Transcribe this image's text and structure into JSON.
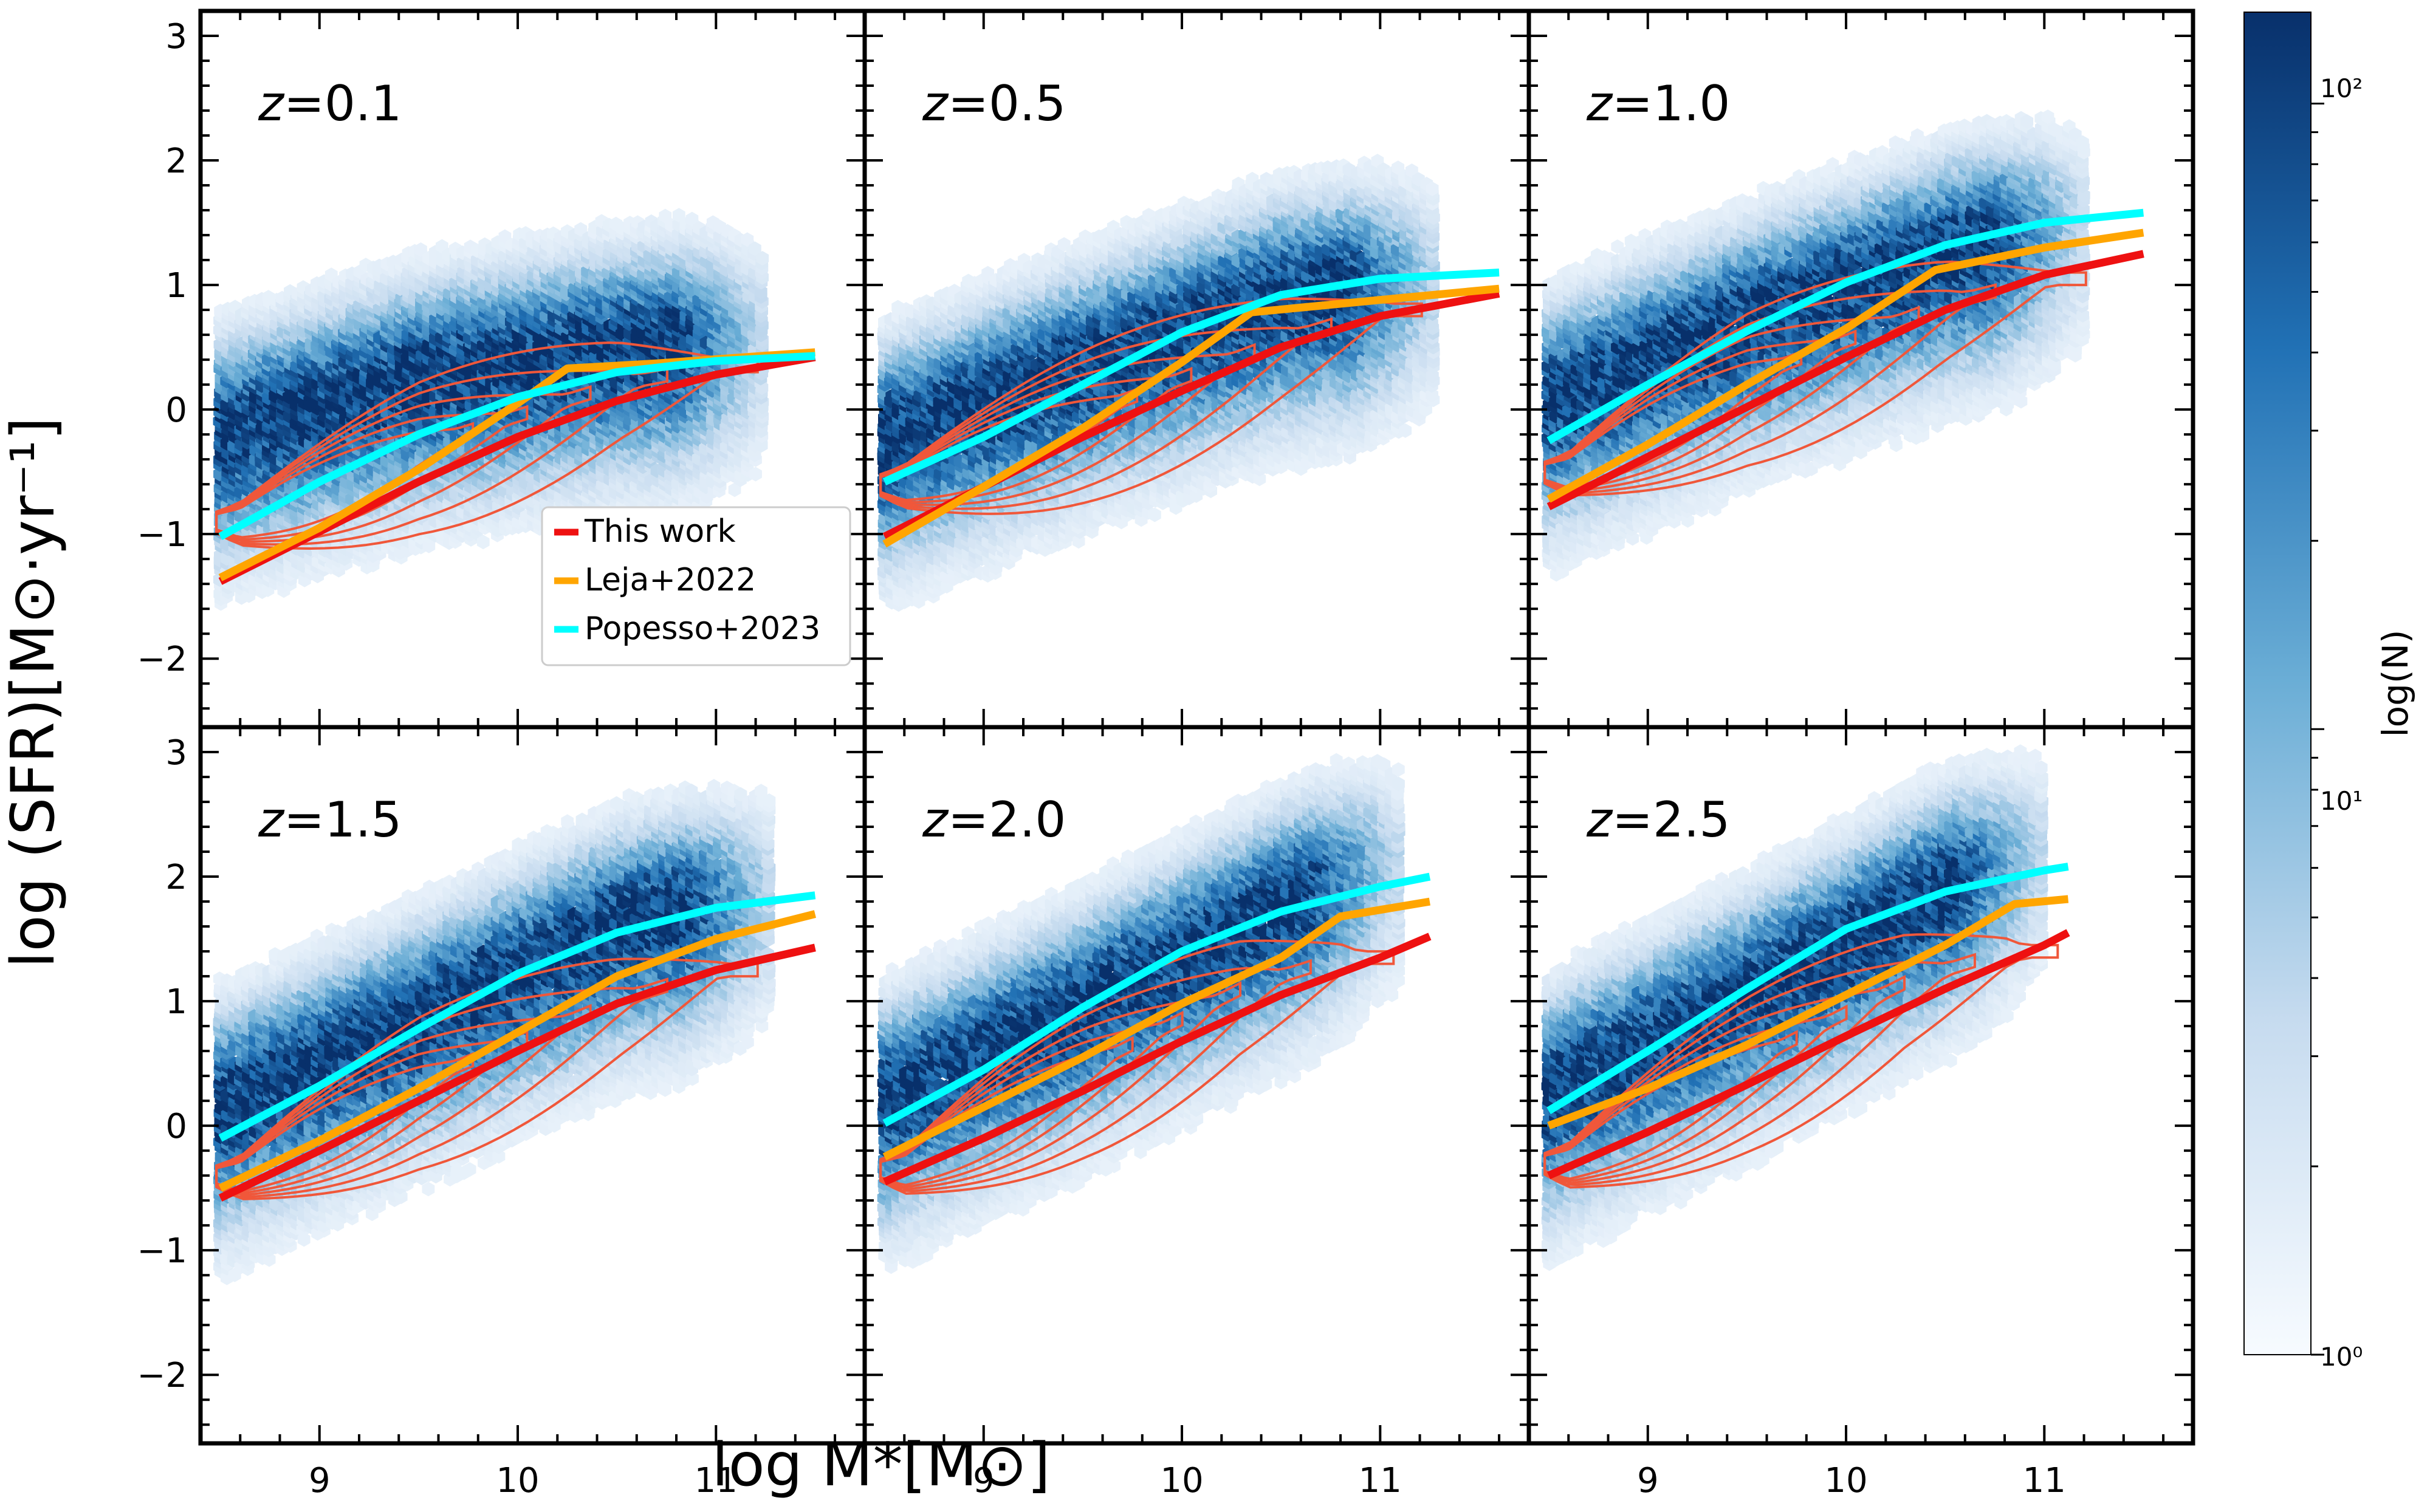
{
  "figure": {
    "xlabel": "log M*[M⊙]",
    "ylabel": "log (SFR)[M⊙·yr⁻¹]",
    "colorbar": {
      "label": "log(N)",
      "ticks": [
        "10⁰",
        "10¹",
        "10²"
      ],
      "tick_values": [
        1,
        10,
        100
      ],
      "range": [
        1,
        140
      ],
      "cmap": [
        "#f7fbff",
        "#c6dbef",
        "#6baed6",
        "#2171b5",
        "#08306b"
      ]
    },
    "legend": {
      "location": "lower-right of first panel",
      "entries": [
        {
          "label": "This work",
          "color": "#ee1111"
        },
        {
          "label": "Leja+2022",
          "color": "#ffa500"
        },
        {
          "label": "Popesso+2023",
          "color": "#00ffff"
        }
      ]
    },
    "contour_color": "#f0573a"
  },
  "chart_data": [
    {
      "type": "line",
      "panel_label": "z=0.1",
      "z": "0.1",
      "xlim": [
        8.4,
        11.75
      ],
      "ylim": [
        -2.55,
        3.2
      ],
      "xticks": [
        9,
        10,
        11
      ],
      "yticks": [
        -2,
        -1,
        0,
        1,
        2,
        3
      ],
      "series": [
        {
          "name": "This work",
          "x": [
            8.5,
            9.0,
            9.5,
            10.0,
            10.5,
            11.0,
            11.5
          ],
          "y": [
            -1.38,
            -0.98,
            -0.58,
            -0.22,
            0.07,
            0.28,
            0.42
          ]
        },
        {
          "name": "Leja+2022",
          "x": [
            8.5,
            9.0,
            9.5,
            10.0,
            10.25,
            10.7,
            11.5
          ],
          "y": [
            -1.35,
            -0.95,
            -0.48,
            0.05,
            0.33,
            0.37,
            0.46
          ]
        },
        {
          "name": "Popesso+2023",
          "x": [
            8.5,
            9.0,
            9.5,
            10.0,
            10.5,
            11.0,
            11.5
          ],
          "y": [
            -1.02,
            -0.58,
            -0.2,
            0.1,
            0.3,
            0.39,
            0.43
          ]
        }
      ],
      "hexbin": {
        "ridge": [
          [
            8.5,
            -0.15
          ],
          [
            9.5,
            0.3
          ],
          [
            10.5,
            0.55
          ],
          [
            11.2,
            0.62
          ]
        ],
        "spread": 0.5,
        "xrange": [
          8.5,
          11.25
        ]
      },
      "contour_ridge": {
        "ridge": [
          [
            8.6,
            -0.9
          ],
          [
            9.5,
            -0.3
          ],
          [
            10.5,
            0.2
          ],
          [
            11.0,
            0.35
          ]
        ]
      }
    },
    {
      "type": "line",
      "panel_label": "z=0.5",
      "z": "0.5",
      "xlim": [
        8.4,
        11.75
      ],
      "ylim": [
        -2.55,
        3.2
      ],
      "xticks": [
        9,
        10,
        11
      ],
      "yticks": [
        -2,
        -1,
        0,
        1,
        2,
        3
      ],
      "series": [
        {
          "name": "This work",
          "x": [
            8.5,
            9.0,
            9.5,
            10.0,
            10.5,
            11.0,
            11.6
          ],
          "y": [
            -1.02,
            -0.62,
            -0.22,
            0.15,
            0.5,
            0.75,
            0.93
          ]
        },
        {
          "name": "Leja+2022",
          "x": [
            8.5,
            9.0,
            9.5,
            10.0,
            10.35,
            11.0,
            11.6
          ],
          "y": [
            -1.08,
            -0.62,
            -0.15,
            0.38,
            0.78,
            0.88,
            0.97
          ]
        },
        {
          "name": "Popesso+2023",
          "x": [
            8.5,
            9.0,
            9.5,
            10.0,
            10.5,
            11.0,
            11.6
          ],
          "y": [
            -0.58,
            -0.22,
            0.2,
            0.62,
            0.92,
            1.05,
            1.1
          ]
        }
      ],
      "hexbin": {
        "ridge": [
          [
            8.5,
            -0.2
          ],
          [
            9.5,
            0.4
          ],
          [
            10.5,
            0.95
          ],
          [
            11.2,
            1.1
          ]
        ],
        "spread": 0.5,
        "xrange": [
          8.5,
          11.3
        ]
      },
      "contour_ridge": {
        "ridge": [
          [
            8.6,
            -0.6
          ],
          [
            9.5,
            -0.05
          ],
          [
            10.5,
            0.55
          ],
          [
            11.0,
            0.8
          ]
        ]
      }
    },
    {
      "type": "line",
      "panel_label": "z=1.0",
      "z": "1.0",
      "xlim": [
        8.4,
        11.75
      ],
      "ylim": [
        -2.55,
        3.2
      ],
      "xticks": [
        9,
        10,
        11
      ],
      "yticks": [
        -2,
        -1,
        0,
        1,
        2,
        3
      ],
      "series": [
        {
          "name": "This work",
          "x": [
            8.5,
            9.0,
            9.5,
            10.0,
            10.5,
            11.0,
            11.5
          ],
          "y": [
            -0.78,
            -0.38,
            0.02,
            0.42,
            0.8,
            1.08,
            1.25
          ]
        },
        {
          "name": "Leja+2022",
          "x": [
            8.5,
            9.0,
            9.5,
            10.0,
            10.45,
            11.0,
            11.5
          ],
          "y": [
            -0.72,
            -0.28,
            0.2,
            0.65,
            1.12,
            1.3,
            1.42
          ]
        },
        {
          "name": "Popesso+2023",
          "x": [
            8.5,
            9.0,
            9.5,
            10.0,
            10.5,
            11.0,
            11.5
          ],
          "y": [
            -0.25,
            0.2,
            0.63,
            1.02,
            1.32,
            1.5,
            1.58
          ]
        }
      ],
      "hexbin": {
        "ridge": [
          [
            8.5,
            0.1
          ],
          [
            9.5,
            0.75
          ],
          [
            10.5,
            1.3
          ],
          [
            11.2,
            1.55
          ]
        ],
        "spread": 0.5,
        "xrange": [
          8.5,
          11.2
        ]
      },
      "contour_ridge": {
        "ridge": [
          [
            8.6,
            -0.5
          ],
          [
            9.5,
            0.25
          ],
          [
            10.5,
            0.85
          ],
          [
            11.0,
            1.05
          ]
        ]
      }
    },
    {
      "type": "line",
      "panel_label": "z=1.5",
      "z": "1.5",
      "xlim": [
        8.4,
        11.75
      ],
      "ylim": [
        -2.55,
        3.2
      ],
      "xticks": [
        9,
        10,
        11
      ],
      "yticks": [
        -2,
        -1,
        0,
        1,
        2,
        3
      ],
      "series": [
        {
          "name": "This work",
          "x": [
            8.5,
            9.0,
            9.5,
            10.0,
            10.5,
            11.0,
            11.5
          ],
          "y": [
            -0.58,
            -0.2,
            0.2,
            0.6,
            0.98,
            1.25,
            1.43
          ]
        },
        {
          "name": "Leja+2022",
          "x": [
            8.5,
            9.0,
            9.5,
            10.0,
            10.5,
            11.0,
            11.5
          ],
          "y": [
            -0.5,
            -0.12,
            0.3,
            0.75,
            1.2,
            1.5,
            1.7
          ]
        },
        {
          "name": "Popesso+2023",
          "x": [
            8.5,
            9.0,
            9.5,
            10.0,
            10.5,
            11.0,
            11.5
          ],
          "y": [
            -0.1,
            0.32,
            0.78,
            1.22,
            1.55,
            1.75,
            1.85
          ]
        }
      ],
      "hexbin": {
        "ridge": [
          [
            8.5,
            0.2
          ],
          [
            9.5,
            0.9
          ],
          [
            10.5,
            1.65
          ],
          [
            11.2,
            1.9
          ]
        ],
        "spread": 0.5,
        "xrange": [
          8.5,
          11.3
        ]
      },
      "contour_ridge": {
        "ridge": [
          [
            8.6,
            -0.4
          ],
          [
            9.5,
            0.35
          ],
          [
            10.5,
            1.0
          ],
          [
            11.0,
            1.25
          ]
        ]
      }
    },
    {
      "type": "line",
      "panel_label": "z=2.0",
      "z": "2.0",
      "xlim": [
        8.4,
        11.75
      ],
      "ylim": [
        -2.55,
        3.2
      ],
      "xticks": [
        9,
        10,
        11
      ],
      "yticks": [
        -2,
        -1,
        0,
        1,
        2,
        3
      ],
      "series": [
        {
          "name": "This work",
          "x": [
            8.5,
            9.0,
            9.5,
            10.0,
            10.5,
            11.0,
            11.25
          ],
          "y": [
            -0.45,
            -0.1,
            0.28,
            0.68,
            1.05,
            1.35,
            1.52
          ]
        },
        {
          "name": "Leja+2022",
          "x": [
            8.5,
            9.0,
            9.5,
            10.0,
            10.5,
            10.8,
            11.25
          ],
          "y": [
            -0.25,
            0.15,
            0.55,
            0.98,
            1.35,
            1.68,
            1.8
          ]
        },
        {
          "name": "Popesso+2023",
          "x": [
            8.5,
            9.0,
            9.5,
            10.0,
            10.5,
            11.0,
            11.25
          ],
          "y": [
            0.02,
            0.45,
            0.95,
            1.4,
            1.72,
            1.92,
            2.0
          ]
        }
      ],
      "hexbin": {
        "ridge": [
          [
            8.5,
            0.25
          ],
          [
            9.5,
            1.0
          ],
          [
            10.5,
            1.8
          ],
          [
            11.0,
            2.15
          ]
        ],
        "spread": 0.5,
        "xrange": [
          8.5,
          11.1
        ]
      },
      "contour_ridge": {
        "ridge": [
          [
            8.6,
            -0.35
          ],
          [
            9.5,
            0.45
          ],
          [
            10.3,
            1.1
          ],
          [
            10.8,
            1.35
          ]
        ]
      }
    },
    {
      "type": "line",
      "panel_label": "z=2.5",
      "z": "2.5",
      "xlim": [
        8.4,
        11.75
      ],
      "ylim": [
        -2.55,
        3.2
      ],
      "xticks": [
        9,
        10,
        11
      ],
      "yticks": [
        -2,
        -1,
        0,
        1,
        2,
        3
      ],
      "series": [
        {
          "name": "This work",
          "x": [
            8.5,
            9.0,
            9.5,
            10.0,
            10.5,
            11.0,
            11.12
          ],
          "y": [
            -0.4,
            -0.05,
            0.33,
            0.72,
            1.1,
            1.45,
            1.55
          ]
        },
        {
          "name": "Leja+2022",
          "x": [
            8.5,
            9.0,
            9.5,
            10.0,
            10.5,
            10.85,
            11.12
          ],
          "y": [
            0.0,
            0.3,
            0.65,
            1.05,
            1.45,
            1.78,
            1.82
          ]
        },
        {
          "name": "Popesso+2023",
          "x": [
            8.5,
            9.0,
            9.5,
            10.0,
            10.5,
            11.0,
            11.12
          ],
          "y": [
            0.12,
            0.6,
            1.1,
            1.58,
            1.88,
            2.05,
            2.08
          ]
        }
      ],
      "hexbin": {
        "ridge": [
          [
            8.5,
            0.3
          ],
          [
            9.5,
            1.1
          ],
          [
            10.5,
            1.95
          ],
          [
            11.0,
            2.25
          ]
        ],
        "spread": 0.5,
        "xrange": [
          8.5,
          11.0
        ]
      },
      "contour_ridge": {
        "ridge": [
          [
            8.6,
            -0.3
          ],
          [
            9.5,
            0.5
          ],
          [
            10.3,
            1.15
          ],
          [
            10.8,
            1.4
          ]
        ]
      }
    }
  ]
}
